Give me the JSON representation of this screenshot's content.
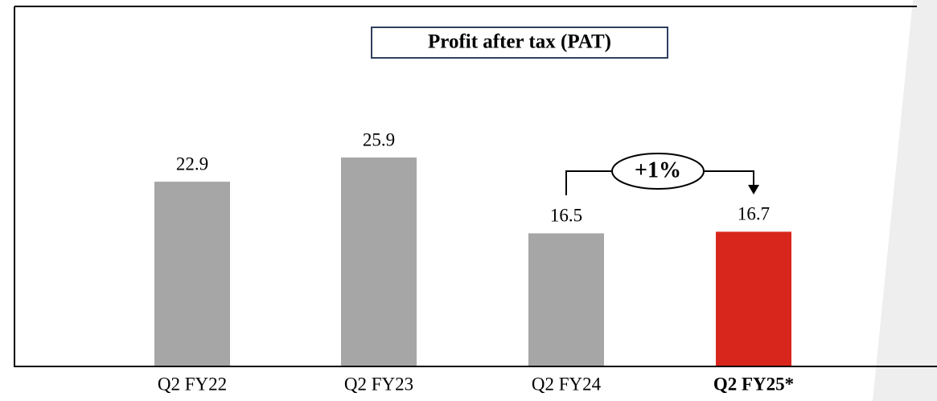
{
  "chart_data": {
    "type": "bar",
    "title": "Profit after tax (PAT)",
    "categories": [
      "Q2 FY22",
      "Q2 FY23",
      "Q2 FY24",
      "Q2 FY25*"
    ],
    "values": [
      22.9,
      25.9,
      16.5,
      16.7
    ],
    "colors": [
      "#a6a6a6",
      "#a6a6a6",
      "#a6a6a6",
      "#d9261c"
    ],
    "bold_categories": [
      3
    ],
    "annotation": "+1%"
  }
}
